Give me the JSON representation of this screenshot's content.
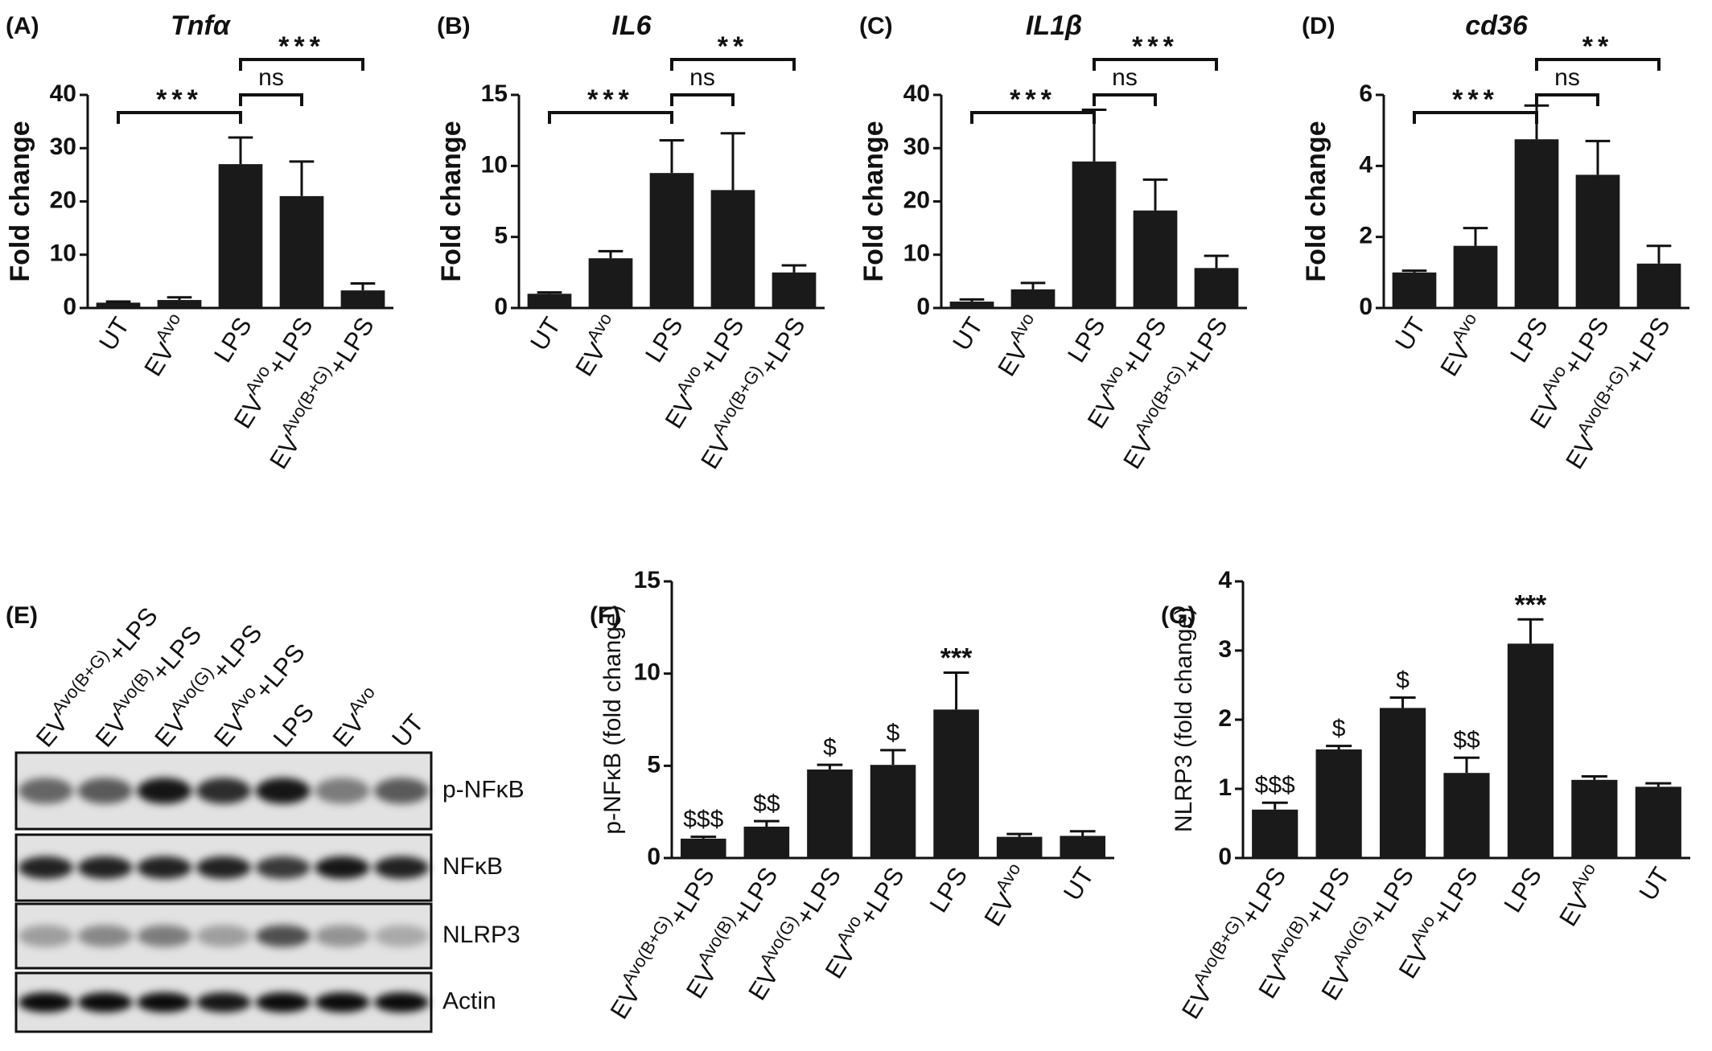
{
  "chart_data": [
    {
      "type": "bar",
      "panel": "(A)",
      "title": "Tnfα",
      "ylabel": "Fold change",
      "color": "#1a1a1a",
      "categories": [
        {
          "text": "UT"
        },
        {
          "text": "EV",
          "sup": "Avo"
        },
        {
          "text": "LPS"
        },
        {
          "text": "EV",
          "sup": "Avo",
          "post": "+LPS"
        },
        {
          "text": "EV",
          "sup": "Avo(B+G)",
          "post": "+LPS"
        }
      ],
      "values": [
        1,
        1.5,
        27,
        21,
        3.3
      ],
      "errors": [
        0.2,
        0.5,
        5,
        6.5,
        1.3
      ],
      "ylim": [
        0,
        40
      ],
      "yticks": [
        0,
        10,
        20,
        30,
        40
      ],
      "brackets": [
        {
          "from": 0,
          "to": 2,
          "label": "***"
        },
        {
          "from": 2,
          "to": 3,
          "label": "ns"
        },
        {
          "from": 2,
          "to": 4,
          "label": "***"
        }
      ]
    },
    {
      "type": "bar",
      "panel": "(B)",
      "title": "IL6",
      "ylabel": "Fold change",
      "color": "#1a1a1a",
      "categories": [
        {
          "text": "UT"
        },
        {
          "text": "EV",
          "sup": "Avo"
        },
        {
          "text": "LPS"
        },
        {
          "text": "EV",
          "sup": "Avo",
          "post": "+LPS"
        },
        {
          "text": "EV",
          "sup": "Avo(B+G)",
          "post": "+LPS"
        }
      ],
      "values": [
        1,
        3.5,
        9.5,
        8.3,
        2.5
      ],
      "errors": [
        0.1,
        0.5,
        2.3,
        4,
        0.5
      ],
      "ylim": [
        0,
        15
      ],
      "yticks": [
        0,
        5,
        10,
        15
      ],
      "brackets": [
        {
          "from": 0,
          "to": 2,
          "label": "***"
        },
        {
          "from": 2,
          "to": 3,
          "label": "ns"
        },
        {
          "from": 2,
          "to": 4,
          "label": "**"
        }
      ]
    },
    {
      "type": "bar",
      "panel": "(C)",
      "title": "IL1β",
      "ylabel": "Fold change",
      "color": "#1a1a1a",
      "categories": [
        {
          "text": "UT"
        },
        {
          "text": "EV",
          "sup": "Avo"
        },
        {
          "text": "LPS"
        },
        {
          "text": "EV",
          "sup": "Avo",
          "post": "+LPS"
        },
        {
          "text": "EV",
          "sup": "Avo(B+G)",
          "post": "+LPS"
        }
      ],
      "values": [
        1.2,
        3.5,
        27.5,
        18.3,
        7.5
      ],
      "errors": [
        0.4,
        1.2,
        9.7,
        5.8,
        2.3
      ],
      "ylim": [
        0,
        40
      ],
      "yticks": [
        0,
        10,
        20,
        30,
        40
      ],
      "brackets": [
        {
          "from": 0,
          "to": 2,
          "label": "***"
        },
        {
          "from": 2,
          "to": 3,
          "label": "ns"
        },
        {
          "from": 2,
          "to": 4,
          "label": "***"
        }
      ]
    },
    {
      "type": "bar",
      "panel": "(D)",
      "title": "cd36",
      "ylabel": "Fold change",
      "color": "#1a1a1a",
      "categories": [
        {
          "text": "UT"
        },
        {
          "text": "EV",
          "sup": "Avo"
        },
        {
          "text": "LPS"
        },
        {
          "text": "EV",
          "sup": "Avo",
          "post": "+LPS"
        },
        {
          "text": "EV",
          "sup": "Avo(B+G)",
          "post": "+LPS"
        }
      ],
      "values": [
        1,
        1.75,
        4.75,
        3.75,
        1.25
      ],
      "errors": [
        0.05,
        0.5,
        0.95,
        0.95,
        0.5
      ],
      "ylim": [
        0,
        6
      ],
      "yticks": [
        0,
        2,
        4,
        6
      ],
      "brackets": [
        {
          "from": 0,
          "to": 2,
          "label": "***"
        },
        {
          "from": 2,
          "to": 3,
          "label": "ns"
        },
        {
          "from": 2,
          "to": 4,
          "label": "**"
        }
      ]
    },
    {
      "type": "bar",
      "panel": "(F)",
      "ylabel": "p-NFκB (fold change)",
      "color": "#1a1a1a",
      "categories": [
        {
          "text": "EV",
          "sup": "Avo(B+G)",
          "post": "+LPS"
        },
        {
          "text": "EV",
          "sup": "Avo(B)",
          "post": "+LPS"
        },
        {
          "text": "EV",
          "sup": "Avo(G)",
          "post": "+LPS"
        },
        {
          "text": "EV",
          "sup": "Avo",
          "post": "+LPS"
        },
        {
          "text": "LPS"
        },
        {
          "text": "EV",
          "sup": "Avo"
        },
        {
          "text": "UT"
        }
      ],
      "values": [
        1.05,
        1.7,
        4.8,
        5.05,
        8.05,
        1.15,
        1.2
      ],
      "errors": [
        0.1,
        0.3,
        0.25,
        0.8,
        2.0,
        0.15,
        0.25
      ],
      "bar_labels": [
        "$$$",
        "$$",
        "$",
        "$",
        "***",
        null,
        null
      ],
      "ylim": [
        0,
        15
      ],
      "yticks": [
        0,
        5,
        10,
        15
      ]
    },
    {
      "type": "bar",
      "panel": "(G)",
      "ylabel": "NLRP3 (fold change)",
      "color": "#1a1a1a",
      "categories": [
        {
          "text": "EV",
          "sup": "Avo(B+G)",
          "post": "+LPS"
        },
        {
          "text": "EV",
          "sup": "Avo(B)",
          "post": "+LPS"
        },
        {
          "text": "EV",
          "sup": "Avo(G)",
          "post": "+LPS"
        },
        {
          "text": "EV",
          "sup": "Avo",
          "post": "+LPS"
        },
        {
          "text": "LPS"
        },
        {
          "text": "EV",
          "sup": "Avo"
        },
        {
          "text": "UT"
        }
      ],
      "values": [
        0.7,
        1.57,
        2.17,
        1.23,
        3.1,
        1.13,
        1.03
      ],
      "errors": [
        0.1,
        0.05,
        0.15,
        0.22,
        0.35,
        0.05,
        0.05
      ],
      "bar_labels": [
        "$$$",
        "$",
        "$",
        "$$",
        "***",
        null,
        null
      ],
      "ylim": [
        0,
        4
      ],
      "yticks": [
        0,
        1,
        2,
        3,
        4
      ]
    }
  ],
  "blot": {
    "panel": "(E)",
    "lanes": [
      {
        "text": "EV",
        "sup": "Avo(B+G)",
        "post": "+LPS"
      },
      {
        "text": "EV",
        "sup": "Avo(B)",
        "post": "+LPS"
      },
      {
        "text": "EV",
        "sup": "Avo(G)",
        "post": "+LPS"
      },
      {
        "text": "EV",
        "sup": "Avo",
        "post": "+LPS"
      },
      {
        "text": "LPS"
      },
      {
        "text": "EV",
        "sup": "Avo"
      },
      {
        "text": "UT"
      }
    ],
    "rows": [
      "p-NFκB",
      "NFκB",
      "NLRP3",
      "Actin"
    ]
  }
}
